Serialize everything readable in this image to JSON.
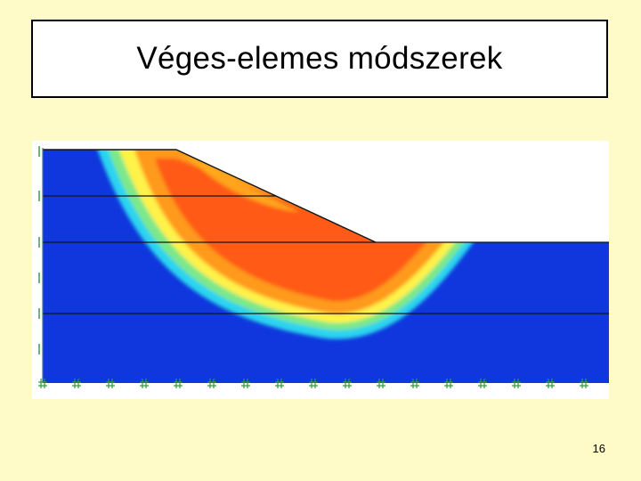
{
  "slide": {
    "title": "Véges-elemes módszerek",
    "page_number": "16"
  },
  "figure": {
    "colors": {
      "background": "#fffbc8",
      "soil": "#0f37dd",
      "sky": "#ffffff",
      "band_cyan": "#2bd4f0",
      "band_green": "#7de88a",
      "band_yellow": "#fff24a",
      "band_orange": "#ff9a1e",
      "band_core": "#ff5a12",
      "layer_line": "#141414",
      "support_mark": "#2f9a3a"
    },
    "icons": [
      "support-hash-icon"
    ]
  }
}
